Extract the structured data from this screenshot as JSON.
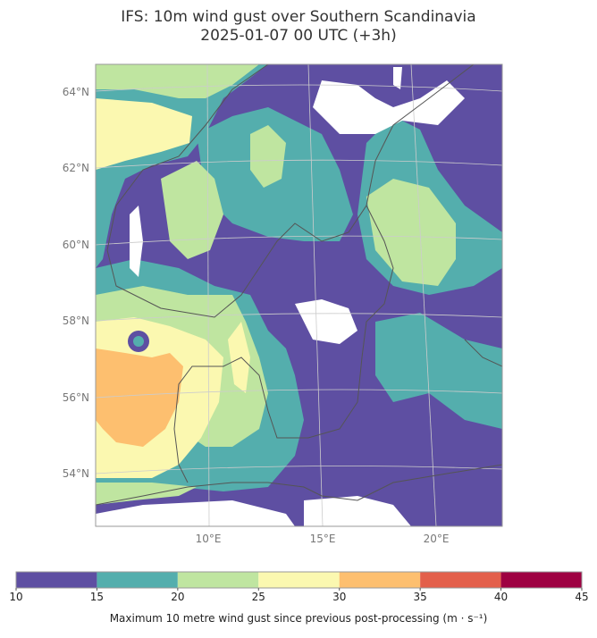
{
  "map": {
    "title": "IFS: 10m wind gust over Southern Scandinavia",
    "subtitle": "2025-01-07 00 UTC (+3h)",
    "lat_labels": [
      "64°N",
      "62°N",
      "60°N",
      "58°N",
      "56°N",
      "54°N"
    ],
    "lon_labels": [
      "10°E",
      "15°E",
      "20°E"
    ]
  },
  "colorbar": {
    "levels": [
      10,
      15,
      20,
      25,
      30,
      35,
      40,
      45
    ],
    "colors": [
      "#5e4fa2",
      "#54aead",
      "#bfe5a0",
      "#fbf8b0",
      "#fdbf6f",
      "#e35f4b",
      "#9e0142"
    ],
    "label": "Maximum 10 metre wind gust since previous post-processing (m · s⁻¹)"
  }
}
